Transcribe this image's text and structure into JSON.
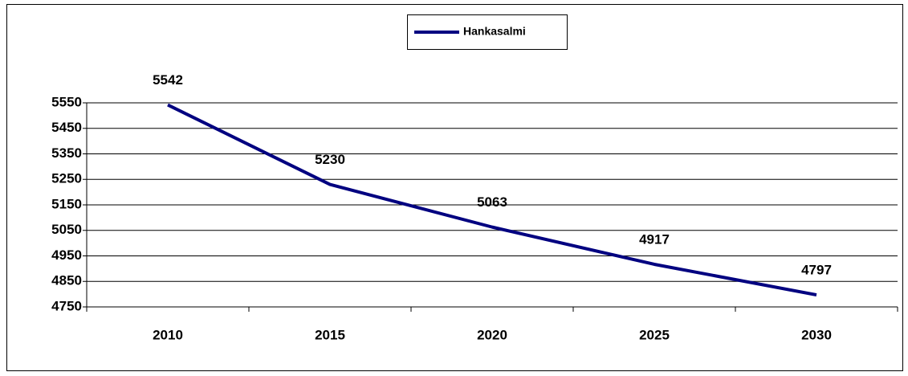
{
  "chart_data": {
    "type": "line",
    "categories": [
      "2010",
      "2015",
      "2020",
      "2025",
      "2030"
    ],
    "series": [
      {
        "name": "Hankasalmi",
        "color": "#000080",
        "values": [
          5542,
          5230,
          5063,
          4917,
          4797
        ]
      }
    ],
    "ylim": [
      4750,
      5550
    ],
    "yticks": [
      4750,
      4850,
      4950,
      5050,
      5150,
      5250,
      5350,
      5450,
      5550
    ],
    "grid": true,
    "legend": "top"
  }
}
